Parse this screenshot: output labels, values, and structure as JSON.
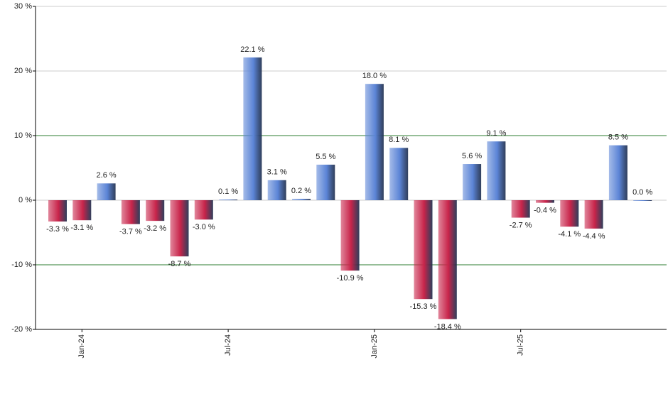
{
  "chart_data": {
    "type": "bar",
    "categories": [
      null,
      "Jan-24",
      null,
      null,
      null,
      null,
      null,
      "Jul-24",
      null,
      null,
      null,
      null,
      null,
      "Jan-25",
      null,
      null,
      null,
      null,
      null,
      "Jul-25",
      null,
      null,
      null,
      null,
      null
    ],
    "values": [
      -3.3,
      -3.1,
      2.6,
      -3.7,
      -3.2,
      -8.7,
      -3.0,
      0.1,
      22.1,
      3.1,
      0.2,
      5.5,
      -10.9,
      18.0,
      8.1,
      -15.3,
      -18.4,
      5.6,
      9.1,
      -2.7,
      -0.4,
      -4.1,
      -4.4,
      8.5,
      0.0
    ],
    "value_labels": [
      "-3.3 %",
      "-3.1 %",
      "2.6 %",
      "-3.7 %",
      "-3.2 %",
      "-8.7 %",
      "-3.0 %",
      "0.1 %",
      "22.1 %",
      "3.1 %",
      "0.2 %",
      "5.5 %",
      "-10.9 %",
      "18.0 %",
      "8.1 %",
      "-15.3 %",
      "-18.4 %",
      "5.6 %",
      "9.1 %",
      "-2.7 %",
      "-0.4 %",
      "-4.1 %",
      "-4.4 %",
      "8.5 %",
      "0.0 %"
    ],
    "positive_color": "#5b84d6",
    "negative_color": "#c8244a",
    "ylim": [
      -20,
      30
    ],
    "yticks": [
      {
        "value": -20,
        "label": "-20 %"
      },
      {
        "value": -10,
        "label": "-10 %",
        "highlight": true
      },
      {
        "value": 0,
        "label": "0 %"
      },
      {
        "value": 10,
        "label": "10 %",
        "highlight": true
      },
      {
        "value": 20,
        "label": "20 %"
      },
      {
        "value": 30,
        "label": "30 %"
      }
    ],
    "grid": true,
    "grid_color": "#cccccc",
    "highlight_grid_color": "#2e7d32"
  }
}
